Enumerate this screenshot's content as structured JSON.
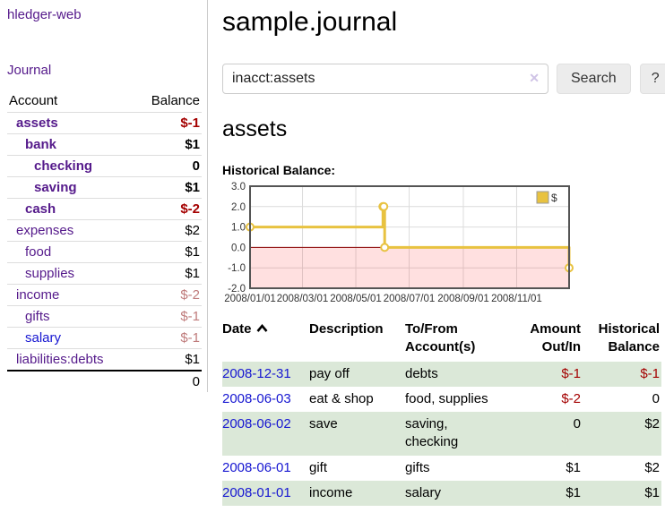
{
  "sidebar": {
    "brand": "hledger-web",
    "nav": {
      "journal": "Journal"
    },
    "accounts_table": {
      "headers": {
        "account": "Account",
        "balance": "Balance"
      },
      "rows": [
        {
          "name": "assets",
          "indent": 1,
          "bold": true,
          "link": "purple",
          "balance": "$-1",
          "balance_style": "neg-strong"
        },
        {
          "name": "bank",
          "indent": 2,
          "bold": true,
          "link": "purple",
          "balance": "$1",
          "balance_style": "normal"
        },
        {
          "name": "checking",
          "indent": 3,
          "bold": true,
          "link": "purple",
          "balance": "0",
          "balance_style": "normal"
        },
        {
          "name": "saving",
          "indent": 3,
          "bold": true,
          "link": "purple",
          "balance": "$1",
          "balance_style": "normal"
        },
        {
          "name": "cash",
          "indent": 2,
          "bold": true,
          "link": "purple",
          "balance": "$-2",
          "balance_style": "neg-strong"
        },
        {
          "name": "expenses",
          "indent": 1,
          "bold": false,
          "link": "purple",
          "balance": "$2",
          "balance_style": "normal"
        },
        {
          "name": "food",
          "indent": 2,
          "bold": false,
          "link": "purple",
          "balance": "$1",
          "balance_style": "normal"
        },
        {
          "name": "supplies",
          "indent": 2,
          "bold": false,
          "link": "purple",
          "balance": "$1",
          "balance_style": "normal"
        },
        {
          "name": "income",
          "indent": 1,
          "bold": false,
          "link": "purple",
          "balance": "$-2",
          "balance_style": "neg-soft"
        },
        {
          "name": "gifts",
          "indent": 2,
          "bold": false,
          "link": "purple",
          "balance": "$-1",
          "balance_style": "neg-soft"
        },
        {
          "name": "salary",
          "indent": 2,
          "bold": false,
          "link": "blue",
          "balance": "$-1",
          "balance_style": "neg-soft"
        },
        {
          "name": "liabilities:debts",
          "indent": 1,
          "bold": false,
          "link": "purple",
          "balance": "$1",
          "balance_style": "normal"
        }
      ],
      "total": "0"
    }
  },
  "header": {
    "title": "sample.journal"
  },
  "search": {
    "value": "inacct:assets",
    "clear_icon": "✕",
    "button_label": "Search",
    "help_label": "?"
  },
  "account_page": {
    "heading": "assets",
    "chart_label": "Historical Balance:"
  },
  "chart_data": {
    "type": "line",
    "title": "Historical Balance:",
    "step": true,
    "x_range": [
      "2008-01-01",
      "2008-12-31"
    ],
    "y_range": [
      -2,
      3
    ],
    "y_ticks": [
      {
        "v": 3,
        "label": "3.0"
      },
      {
        "v": 2,
        "label": "2.0"
      },
      {
        "v": 1,
        "label": "1.0"
      },
      {
        "v": 0,
        "label": "0.0"
      },
      {
        "v": -1,
        "label": "-1.0"
      },
      {
        "v": -2,
        "label": "-2.0"
      }
    ],
    "x_ticks": [
      {
        "v": "2008-01-01",
        "label": "2008/01/01"
      },
      {
        "v": "2008-03-01",
        "label": "2008/03/01"
      },
      {
        "v": "2008-05-01",
        "label": "2008/05/01"
      },
      {
        "v": "2008-07-01",
        "label": "2008/07/01"
      },
      {
        "v": "2008-09-01",
        "label": "2008/09/01"
      },
      {
        "v": "2008-11-01",
        "label": "2008/11/01"
      }
    ],
    "series": [
      {
        "name": "$",
        "color": "#e8c240",
        "points": [
          {
            "x": "2008-01-01",
            "y": 1
          },
          {
            "x": "2008-06-01",
            "y": 2
          },
          {
            "x": "2008-06-02",
            "y": 2
          },
          {
            "x": "2008-06-03",
            "y": 0
          },
          {
            "x": "2008-12-31",
            "y": -1
          }
        ]
      }
    ],
    "legend_position": "top-right",
    "grid": true,
    "zero_line_color": "#8b0000",
    "negative_fill": "rgba(255,0,0,0.12)",
    "border_color": "#545454",
    "grid_color": "#dcdcdc"
  },
  "transactions": {
    "headers": {
      "date": "Date",
      "description": "Description",
      "accounts": "To/From Account(s)",
      "amount": "Amount Out/In",
      "balance": "Historical Balance"
    },
    "sort": {
      "column": "date",
      "direction": "ascending"
    },
    "rows": [
      {
        "date": "2008-12-31",
        "description": "pay off",
        "accounts": "debts",
        "amount": "$-1",
        "amount_style": "neg",
        "balance": "$-1",
        "balance_style": "neg"
      },
      {
        "date": "2008-06-03",
        "description": "eat & shop",
        "accounts": "food, supplies",
        "amount": "$-2",
        "amount_style": "neg",
        "balance": "0",
        "balance_style": "normal"
      },
      {
        "date": "2008-06-02",
        "description": "save",
        "accounts": "saving, checking",
        "amount": "0",
        "amount_style": "normal",
        "balance": "$2",
        "balance_style": "normal"
      },
      {
        "date": "2008-06-01",
        "description": "gift",
        "accounts": "gifts",
        "amount": "$1",
        "amount_style": "normal",
        "balance": "$2",
        "balance_style": "normal"
      },
      {
        "date": "2008-01-01",
        "description": "income",
        "accounts": "salary",
        "amount": "$1",
        "amount_style": "normal",
        "balance": "$1",
        "balance_style": "normal"
      }
    ]
  },
  "colors": {
    "link_purple": "#551a8b",
    "link_blue": "#1616d1",
    "negative_strong": "#a40000",
    "negative_soft": "#bf7b7b",
    "row_stripe_green": "#dbe8d8",
    "chart_gold": "#e8c240",
    "chart_zero_line": "#8b0000"
  }
}
